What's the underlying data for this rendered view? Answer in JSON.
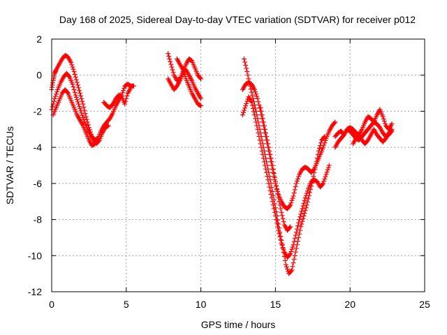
{
  "chart_data": {
    "type": "scatter",
    "title": "Day 168 of 2025, Sidereal Day-to-day VTEC variation (SDTVAR) for receiver p012",
    "xlabel": "GPS time / hours",
    "ylabel": "SDTVAR / TECUs",
    "xlim": [
      0,
      25
    ],
    "ylim": [
      -12,
      2
    ],
    "xticks": [
      0,
      5,
      10,
      15,
      20,
      25
    ],
    "yticks": [
      -12,
      -10,
      -8,
      -6,
      -4,
      -2,
      0,
      2
    ],
    "grid": true,
    "marker": "+",
    "color": "#ff0000",
    "series": [
      {
        "values": [
          [
            0.0,
            -0.8
          ],
          [
            0.1,
            -0.3
          ],
          [
            0.2,
            0.1
          ],
          [
            0.3,
            0.3
          ],
          [
            0.5,
            0.6
          ],
          [
            0.7,
            0.9
          ],
          [
            0.9,
            1.1
          ],
          [
            1.1,
            1.0
          ],
          [
            1.3,
            0.7
          ],
          [
            1.5,
            0.2
          ],
          [
            1.7,
            -0.4
          ],
          [
            1.9,
            -1.0
          ],
          [
            2.1,
            -1.6
          ],
          [
            2.3,
            -2.3
          ],
          [
            2.5,
            -2.9
          ],
          [
            2.7,
            -3.4
          ],
          [
            2.9,
            -3.6
          ],
          [
            3.1,
            -3.5
          ],
          [
            3.3,
            -3.1
          ],
          [
            3.5,
            -2.8
          ],
          [
            3.7,
            -2.6
          ],
          [
            3.9,
            -2.4
          ],
          [
            4.1,
            -2.1
          ],
          [
            4.3,
            -1.7
          ],
          [
            4.5,
            -1.4
          ],
          [
            4.7,
            -1.1
          ],
          [
            4.9,
            -0.6
          ],
          [
            5.1,
            -0.5
          ],
          [
            5.3,
            -0.6
          ],
          [
            5.5,
            -0.6
          ]
        ]
      },
      {
        "values": [
          [
            0.0,
            -1.9
          ],
          [
            0.2,
            -1.3
          ],
          [
            0.4,
            -0.8
          ],
          [
            0.6,
            -0.4
          ],
          [
            0.8,
            -0.1
          ],
          [
            1.0,
            0.1
          ],
          [
            1.2,
            -0.1
          ],
          [
            1.4,
            -0.5
          ],
          [
            1.6,
            -1.1
          ],
          [
            1.8,
            -1.6
          ],
          [
            2.0,
            -2.1
          ],
          [
            2.2,
            -2.6
          ],
          [
            2.4,
            -3.0
          ],
          [
            2.6,
            -3.3
          ],
          [
            2.8,
            -3.6
          ],
          [
            3.0,
            -3.8
          ],
          [
            3.2,
            -3.6
          ],
          [
            3.4,
            -3.2
          ],
          [
            3.6,
            -2.9
          ],
          [
            3.8,
            -2.8
          ]
        ]
      },
      {
        "values": [
          [
            0.1,
            -2.2
          ],
          [
            0.3,
            -1.8
          ],
          [
            0.5,
            -1.4
          ],
          [
            0.7,
            -1.0
          ],
          [
            0.9,
            -0.8
          ],
          [
            1.1,
            -1.0
          ],
          [
            1.3,
            -1.4
          ],
          [
            1.5,
            -1.8
          ],
          [
            1.7,
            -2.2
          ],
          [
            1.9,
            -2.5
          ],
          [
            2.1,
            -2.8
          ],
          [
            2.3,
            -3.2
          ],
          [
            2.5,
            -3.6
          ],
          [
            2.7,
            -3.9
          ],
          [
            2.9,
            -3.8
          ]
        ]
      },
      {
        "values": [
          [
            3.5,
            -1.5
          ],
          [
            3.7,
            -1.7
          ],
          [
            3.9,
            -1.8
          ],
          [
            4.1,
            -1.6
          ],
          [
            4.3,
            -1.3
          ],
          [
            4.5,
            -1.1
          ],
          [
            4.7,
            -1.2
          ],
          [
            4.9,
            -1.6
          ],
          [
            5.1,
            -1.0
          ],
          [
            5.3,
            -0.7
          ]
        ]
      },
      {
        "values": [
          [
            7.8,
            1.2
          ],
          [
            8.0,
            0.6
          ],
          [
            8.2,
            0.0
          ],
          [
            8.4,
            -0.3
          ],
          [
            8.6,
            -0.2
          ],
          [
            8.8,
            0.2
          ],
          [
            9.0,
            0.6
          ],
          [
            9.2,
            0.9
          ],
          [
            9.4,
            0.8
          ],
          [
            9.6,
            0.4
          ],
          [
            9.8,
            0.0
          ],
          [
            10.0,
            -0.2
          ]
        ]
      },
      {
        "values": [
          [
            7.8,
            -0.2
          ],
          [
            8.0,
            -0.5
          ],
          [
            8.2,
            -0.8
          ],
          [
            8.4,
            -0.6
          ],
          [
            8.6,
            -0.3
          ],
          [
            8.8,
            0.1
          ],
          [
            9.0,
            0.3
          ],
          [
            9.2,
            0.0
          ],
          [
            9.4,
            -0.3
          ],
          [
            9.6,
            -0.7
          ],
          [
            9.8,
            -1.0
          ],
          [
            10.0,
            -1.3
          ]
        ]
      },
      {
        "values": [
          [
            8.4,
            0.9
          ],
          [
            8.6,
            0.6
          ],
          [
            8.8,
            0.3
          ],
          [
            9.0,
            -0.2
          ],
          [
            9.2,
            -0.6
          ],
          [
            9.4,
            -1.0
          ],
          [
            9.6,
            -1.3
          ],
          [
            9.8,
            -1.6
          ],
          [
            10.0,
            -1.7
          ]
        ]
      },
      {
        "values": [
          [
            12.8,
            -0.8
          ],
          [
            13.0,
            -0.5
          ],
          [
            13.2,
            -0.4
          ],
          [
            13.4,
            -0.5
          ],
          [
            13.6,
            -0.8
          ],
          [
            13.8,
            -1.3
          ],
          [
            14.0,
            -2.0
          ],
          [
            14.2,
            -2.8
          ],
          [
            14.4,
            -3.6
          ],
          [
            14.6,
            -4.4
          ],
          [
            14.8,
            -5.2
          ],
          [
            15.0,
            -6.0
          ],
          [
            15.2,
            -6.6
          ],
          [
            15.4,
            -7.0
          ],
          [
            15.6,
            -7.3
          ],
          [
            15.8,
            -7.4
          ],
          [
            16.0,
            -7.2
          ],
          [
            16.2,
            -6.7
          ],
          [
            16.4,
            -6.0
          ],
          [
            16.6,
            -5.5
          ],
          [
            16.8,
            -5.2
          ],
          [
            17.0,
            -5.1
          ],
          [
            17.2,
            -5.2
          ],
          [
            17.4,
            -5.4
          ],
          [
            17.6,
            -5.2
          ],
          [
            17.8,
            -4.8
          ],
          [
            18.0,
            -4.4
          ],
          [
            18.2,
            -4.0
          ],
          [
            18.4,
            -3.5
          ],
          [
            18.6,
            -3.1
          ],
          [
            18.8,
            -2.8
          ],
          [
            19.0,
            -2.6
          ]
        ]
      },
      {
        "values": [
          [
            12.8,
            -2.2
          ],
          [
            13.0,
            -1.7
          ],
          [
            13.2,
            -1.2
          ],
          [
            13.4,
            -1.5
          ],
          [
            13.6,
            -2.2
          ],
          [
            13.8,
            -3.0
          ],
          [
            14.0,
            -3.8
          ],
          [
            14.2,
            -4.6
          ],
          [
            14.4,
            -5.4
          ],
          [
            14.6,
            -6.2
          ],
          [
            14.8,
            -7.0
          ],
          [
            15.0,
            -7.8
          ],
          [
            15.2,
            -8.6
          ],
          [
            15.4,
            -9.3
          ],
          [
            15.6,
            -9.8
          ],
          [
            15.8,
            -10.1
          ],
          [
            16.0,
            -9.9
          ],
          [
            16.2,
            -9.4
          ],
          [
            16.4,
            -8.7
          ],
          [
            16.6,
            -8.0
          ],
          [
            16.8,
            -7.4
          ],
          [
            17.0,
            -6.8
          ],
          [
            17.2,
            -6.3
          ],
          [
            17.4,
            -5.9
          ],
          [
            17.6,
            -5.8
          ],
          [
            17.8,
            -5.9
          ],
          [
            18.0,
            -6.2
          ],
          [
            18.2,
            -6.0
          ],
          [
            18.4,
            -5.5
          ],
          [
            18.6,
            -5.0
          ]
        ]
      },
      {
        "values": [
          [
            12.9,
            0.9
          ],
          [
            13.1,
            0.2
          ],
          [
            13.3,
            -0.6
          ],
          [
            13.5,
            -1.3
          ],
          [
            13.7,
            -2.0
          ],
          [
            13.9,
            -2.8
          ],
          [
            14.1,
            -3.6
          ],
          [
            14.3,
            -4.4
          ],
          [
            14.5,
            -5.2
          ],
          [
            14.7,
            -6.0
          ],
          [
            14.9,
            -6.9
          ],
          [
            15.1,
            -7.8
          ],
          [
            15.3,
            -8.7
          ],
          [
            15.5,
            -9.6
          ],
          [
            15.7,
            -10.5
          ],
          [
            15.9,
            -11.0
          ],
          [
            16.1,
            -10.8
          ],
          [
            16.3,
            -10.0
          ],
          [
            16.5,
            -9.2
          ],
          [
            16.7,
            -8.4
          ],
          [
            16.9,
            -7.8
          ],
          [
            17.1,
            -7.2
          ],
          [
            17.3,
            -6.5
          ],
          [
            17.5,
            -5.8
          ],
          [
            17.7,
            -5.0
          ],
          [
            17.9,
            -4.2
          ],
          [
            18.1,
            -3.6
          ],
          [
            18.3,
            -3.4
          ]
        ]
      },
      {
        "values": [
          [
            14.0,
            -1.8
          ],
          [
            14.2,
            -2.6
          ],
          [
            14.4,
            -3.4
          ],
          [
            14.6,
            -4.2
          ],
          [
            14.8,
            -5.0
          ],
          [
            15.0,
            -5.9
          ],
          [
            15.2,
            -6.8
          ],
          [
            15.4,
            -7.6
          ],
          [
            15.6,
            -8.3
          ],
          [
            15.8,
            -8.6
          ],
          [
            16.0,
            -8.4
          ]
        ]
      },
      {
        "values": [
          [
            19.0,
            -3.4
          ],
          [
            19.2,
            -3.2
          ],
          [
            19.4,
            -3.1
          ],
          [
            19.6,
            -3.3
          ],
          [
            19.8,
            -3.0
          ],
          [
            20.0,
            -3.1
          ],
          [
            20.2,
            -3.3
          ],
          [
            20.4,
            -3.5
          ],
          [
            20.6,
            -3.6
          ],
          [
            20.8,
            -3.4
          ],
          [
            21.0,
            -3.2
          ],
          [
            21.2,
            -3.0
          ],
          [
            21.4,
            -2.8
          ],
          [
            21.6,
            -2.6
          ],
          [
            21.8,
            -2.7
          ],
          [
            22.0,
            -2.9
          ],
          [
            22.2,
            -3.2
          ],
          [
            22.4,
            -3.4
          ],
          [
            22.6,
            -3.3
          ],
          [
            22.8,
            -3.1
          ]
        ]
      },
      {
        "values": [
          [
            19.0,
            -4.0
          ],
          [
            19.2,
            -3.7
          ],
          [
            19.4,
            -3.5
          ],
          [
            19.6,
            -3.3
          ],
          [
            19.8,
            -3.0
          ],
          [
            20.0,
            -2.9
          ],
          [
            20.2,
            -3.0
          ],
          [
            20.4,
            -3.2
          ],
          [
            20.6,
            -3.3
          ],
          [
            20.8,
            -3.0
          ],
          [
            21.0,
            -2.6
          ],
          [
            21.2,
            -2.3
          ],
          [
            21.4,
            -2.4
          ],
          [
            21.6,
            -2.6
          ],
          [
            21.8,
            -2.2
          ],
          [
            22.0,
            -1.9
          ],
          [
            22.2,
            -2.3
          ],
          [
            22.4,
            -2.8
          ],
          [
            22.6,
            -3.0
          ],
          [
            22.8,
            -2.7
          ]
        ]
      },
      {
        "values": [
          [
            20.2,
            -3.8
          ],
          [
            20.4,
            -3.5
          ],
          [
            20.6,
            -3.3
          ],
          [
            20.8,
            -3.6
          ],
          [
            21.0,
            -3.8
          ],
          [
            21.2,
            -3.6
          ],
          [
            21.4,
            -3.3
          ],
          [
            21.6,
            -3.0
          ],
          [
            21.8,
            -3.3
          ],
          [
            22.0,
            -3.5
          ],
          [
            22.2,
            -3.7
          ],
          [
            22.4,
            -3.5
          ],
          [
            22.6,
            -3.2
          ],
          [
            22.8,
            -3.0
          ]
        ]
      }
    ]
  }
}
